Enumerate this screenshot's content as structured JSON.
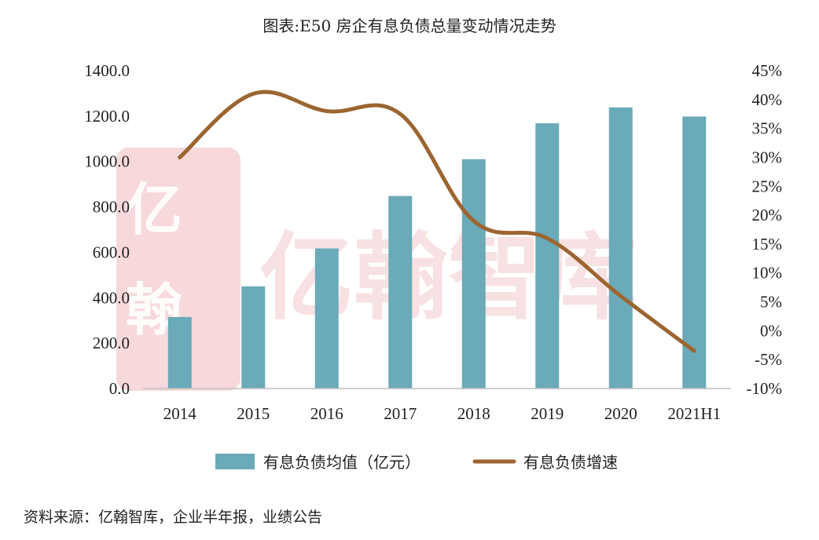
{
  "chart_data": {
    "type": "bar+line",
    "title": "图表:E50 房企有息负债总量变动情况走势",
    "categories": [
      "2014",
      "2015",
      "2016",
      "2017",
      "2018",
      "2019",
      "2020",
      "2021H1"
    ],
    "series": [
      {
        "name": "有息负债均值（亿元）",
        "type": "bar",
        "axis": "left",
        "values": [
          315,
          450,
          617,
          848,
          1010,
          1168,
          1238,
          1198
        ]
      },
      {
        "name": "有息负债增速",
        "type": "line",
        "axis": "right",
        "unit": "%",
        "values": [
          30,
          41,
          38,
          37.5,
          19,
          16,
          6,
          -3.5
        ]
      }
    ],
    "y_left": {
      "min": 0,
      "max": 1400,
      "ticks": [
        "0.0",
        "200.0",
        "400.0",
        "600.0",
        "800.0",
        "1000.0",
        "1200.0",
        "1400.0"
      ]
    },
    "y_right": {
      "min": -10,
      "max": 45,
      "ticks": [
        "-10%",
        "-5%",
        "0%",
        "5%",
        "10%",
        "15%",
        "20%",
        "25%",
        "30%",
        "35%",
        "40%",
        "45%"
      ]
    },
    "legend_position": "bottom",
    "grid": false
  },
  "colors": {
    "bar": "#6aaab9",
    "line": "#9c6530",
    "watermark": "#f1b9be"
  },
  "watermark": {
    "text": "亿翰智库",
    "seal_text": "亿翰"
  },
  "source": "资料来源：亿翰智库，企业半年报，业绩公告"
}
